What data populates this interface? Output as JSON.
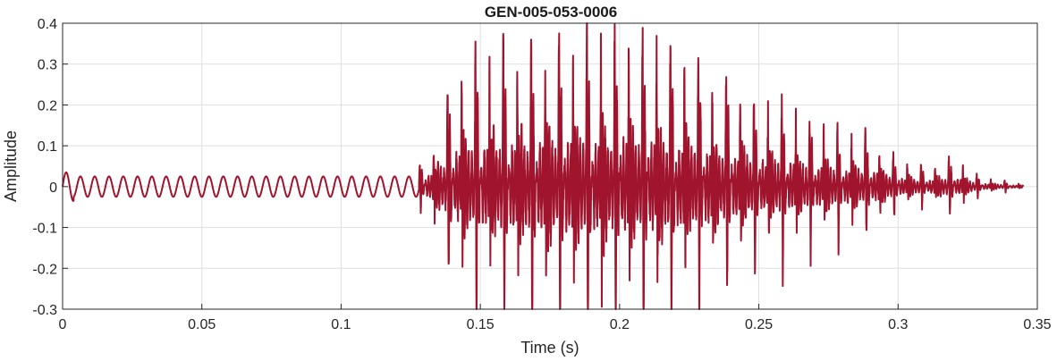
{
  "chart_data": {
    "type": "line",
    "title": "GEN-005-053-0006",
    "xlabel": "Time (s)",
    "ylabel": "Amplitude",
    "xlim": [
      0,
      0.35
    ],
    "ylim": [
      -0.3,
      0.4
    ],
    "grid": true,
    "x_ticks": [
      "0",
      "0.05",
      "0.1",
      "0.15",
      "0.2",
      "0.25",
      "0.3",
      "0.35"
    ],
    "y_ticks": [
      "-0.3",
      "-0.2",
      "-0.1",
      "0",
      "0.1",
      "0.2",
      "0.3",
      "0.4"
    ],
    "series": [
      {
        "color": "#a0142d",
        "segments": [
          {
            "t_start": 0.0,
            "t_end": 0.128,
            "kind": "sinusoid",
            "frequency_hz": 195,
            "amplitude": 0.025
          },
          {
            "t_start": 0.128,
            "t_end": 0.345,
            "kind": "pulse_train",
            "pulse_period_s": 0.005,
            "envelope": [
              [
                0.128,
                0.04
              ],
              [
                0.135,
                0.12
              ],
              [
                0.14,
                0.24
              ],
              [
                0.15,
                0.29
              ],
              [
                0.16,
                0.3
              ],
              [
                0.17,
                0.31
              ],
              [
                0.18,
                0.34
              ],
              [
                0.19,
                0.32
              ],
              [
                0.2,
                0.33
              ],
              [
                0.21,
                0.32
              ],
              [
                0.22,
                0.3
              ],
              [
                0.23,
                0.26
              ],
              [
                0.24,
                0.23
              ],
              [
                0.25,
                0.19
              ],
              [
                0.26,
                0.17
              ],
              [
                0.27,
                0.14
              ],
              [
                0.28,
                0.12
              ],
              [
                0.29,
                0.11
              ],
              [
                0.3,
                0.06
              ],
              [
                0.31,
                0.04
              ],
              [
                0.32,
                0.06
              ],
              [
                0.33,
                0.02
              ],
              [
                0.345,
                0.005
              ]
            ]
          }
        ]
      }
    ]
  }
}
